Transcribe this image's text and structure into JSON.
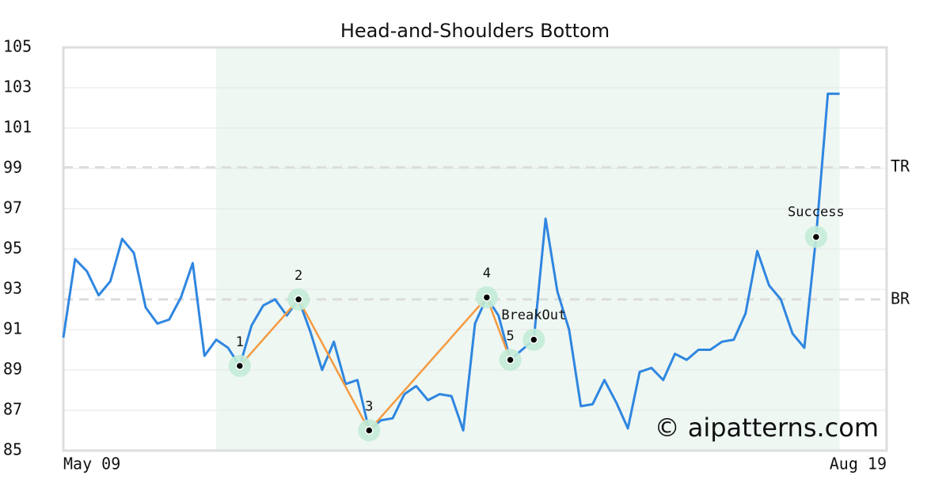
{
  "chart_data": {
    "type": "line",
    "title": "Head-and-Shoulders Bottom",
    "categories": [
      "May 09",
      null,
      null,
      null,
      null,
      null,
      null,
      null,
      null,
      null,
      null,
      null,
      null,
      null,
      null,
      null,
      null,
      null,
      null,
      null,
      null,
      null,
      null,
      null,
      null,
      null,
      null,
      null,
      null,
      null,
      null,
      null,
      null,
      null,
      null,
      null,
      null,
      null,
      null,
      null,
      null,
      null,
      null,
      null,
      null,
      null,
      null,
      null,
      null,
      null,
      null,
      null,
      null,
      null,
      null,
      null,
      null,
      null,
      null,
      null,
      null,
      null,
      null,
      null,
      null,
      null,
      "Aug 19"
    ],
    "values": [
      90.6,
      94.5,
      93.9,
      92.7,
      93.4,
      95.5,
      94.8,
      92.1,
      91.3,
      91.5,
      92.6,
      94.3,
      89.7,
      90.5,
      90.1,
      89.2,
      91.2,
      92.2,
      92.5,
      91.7,
      92.5,
      90.9,
      89.0,
      90.4,
      88.3,
      88.5,
      86.0,
      86.5,
      86.6,
      87.8,
      88.2,
      87.5,
      87.8,
      87.7,
      86.0,
      91.3,
      92.6,
      91.7,
      89.5,
      90.0,
      90.5,
      96.5,
      92.9,
      91.0,
      87.2,
      87.3,
      88.5,
      87.4,
      86.1,
      88.9,
      89.1,
      88.5,
      89.8,
      89.5,
      90.0,
      90.0,
      90.4,
      90.5,
      91.8,
      94.9,
      93.2,
      92.5,
      90.8,
      90.1,
      95.6,
      102.7,
      102.7
    ],
    "color": "#2f86e0",
    "xlim": [
      0,
      70
    ],
    "ylim": [
      85,
      105
    ],
    "yticks": [
      85,
      87,
      89,
      91,
      93,
      95,
      97,
      99,
      101,
      103,
      105
    ],
    "grid": true,
    "shaded_range": [
      13,
      66
    ],
    "shade_color": "#eef7f2",
    "levels": [
      {
        "label": "TR",
        "value": 99.05
      },
      {
        "label": "BR",
        "value": 92.5
      }
    ],
    "pattern_color": "#f59a40",
    "pattern_points": [
      {
        "label": "1",
        "x": 15
      },
      {
        "label": "2",
        "x": 20
      },
      {
        "label": "3",
        "x": 26
      },
      {
        "label": "4",
        "x": 36
      },
      {
        "label": "5",
        "x": 38
      }
    ],
    "events": [
      {
        "label": "BreakOut",
        "x": 40
      },
      {
        "label": "Success",
        "x": 64
      }
    ],
    "watermark": "© aipatterns.com"
  }
}
